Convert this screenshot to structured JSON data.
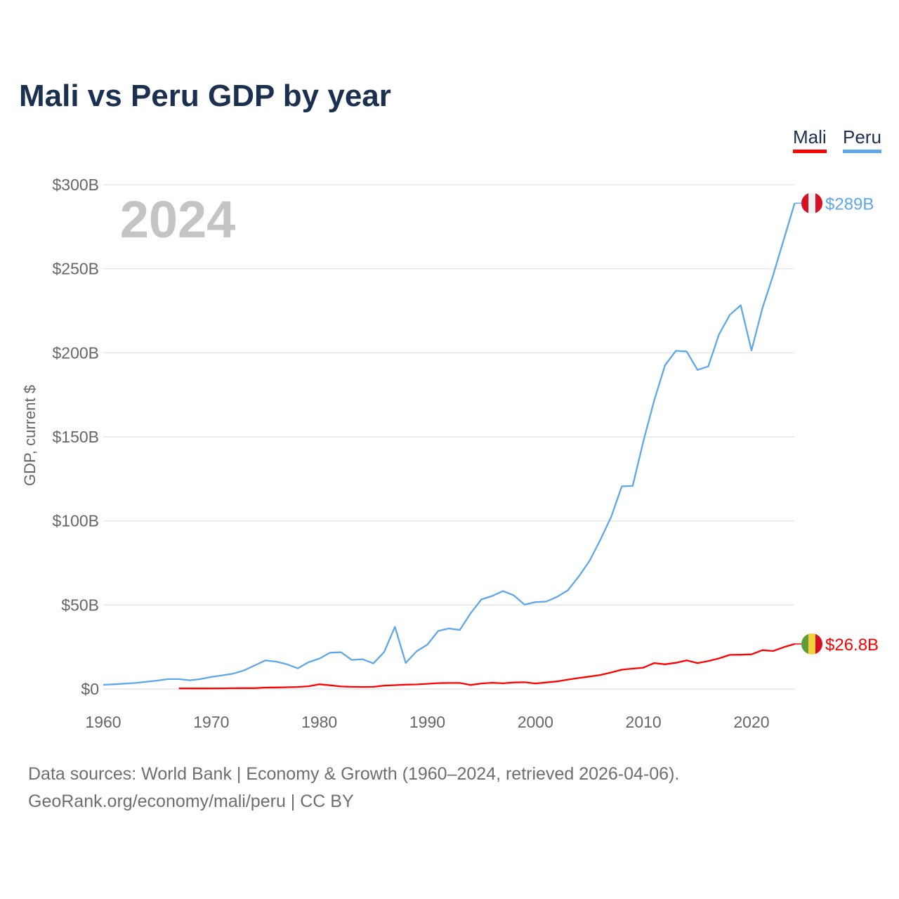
{
  "title": "Mali vs Peru GDP by year",
  "colors": {
    "Mali": "#ff0000",
    "Peru": "#5ea7ea"
  },
  "footer": {
    "line1": "Data sources: World Bank | Economy & Growth (1960–2024, retrieved 2026-04-06).",
    "line2": "GeoRank.org/economy/mali/peru | CC BY"
  },
  "chart_data": {
    "type": "line",
    "title": "Mali vs Peru GDP by year",
    "xlabel": "",
    "ylabel": "GDP, current $",
    "xlim": [
      1960,
      2024
    ],
    "ylim": [
      0,
      300
    ],
    "year_watermark": "2024",
    "xticks": [
      1960,
      1970,
      1980,
      1990,
      2000,
      2010,
      2020
    ],
    "xtick_labels": [
      "1960",
      "1970",
      "1980",
      "1990",
      "2000",
      "2010",
      "2020"
    ],
    "yticks": [
      0,
      50,
      100,
      150,
      200,
      250,
      300
    ],
    "ytick_labels": [
      "$0",
      "$50B",
      "$100B",
      "$150B",
      "$200B",
      "$250B",
      "$300B"
    ],
    "grid": true,
    "legend": "top-right",
    "series": [
      {
        "name": "Mali",
        "start_year": 1967,
        "end_label": "$26.8B",
        "flag": "mali-flag",
        "values": [
          0.33,
          0.33,
          0.35,
          0.34,
          0.37,
          0.44,
          0.51,
          0.51,
          0.83,
          0.93,
          1.05,
          1.23,
          1.62,
          2.8,
          2.2,
          1.5,
          1.3,
          1.2,
          1.3,
          2.0,
          2.3,
          2.6,
          2.7,
          3.1,
          3.5,
          3.6,
          3.6,
          2.4,
          3.3,
          3.7,
          3.4,
          3.9,
          4.0,
          3.3,
          3.9,
          4.5,
          5.6,
          6.5,
          7.4,
          8.3,
          9.8,
          11.5,
          12.1,
          12.7,
          15.4,
          14.7,
          15.6,
          17.0,
          15.4,
          16.6,
          18.2,
          20.3,
          20.4,
          20.6,
          23.1,
          22.6,
          24.9,
          26.8
        ]
      },
      {
        "name": "Peru",
        "start_year": 1960,
        "end_label": "$289B",
        "flag": "peru-flag",
        "values": [
          2.5,
          2.8,
          3.2,
          3.6,
          4.3,
          5.0,
          5.9,
          5.9,
          5.2,
          5.9,
          7.2,
          8.1,
          9.1,
          11.0,
          14.0,
          17.0,
          16.3,
          14.7,
          12.3,
          15.9,
          18.1,
          21.6,
          21.9,
          17.3,
          17.7,
          15.2,
          22.0,
          37.0,
          15.5,
          22.4,
          26.4,
          34.5,
          36.0,
          35.1,
          45.0,
          53.3,
          55.3,
          58.3,
          55.7,
          50.2,
          51.7,
          52.0,
          54.8,
          58.7,
          66.8,
          76.1,
          88.6,
          102.2,
          120.6,
          120.8,
          147.5,
          171.8,
          192.6,
          201.2,
          200.8,
          189.8,
          191.9,
          211.0,
          222.6,
          228.3,
          201.4,
          226.4,
          246.0,
          267.6,
          289.0
        ]
      }
    ]
  }
}
